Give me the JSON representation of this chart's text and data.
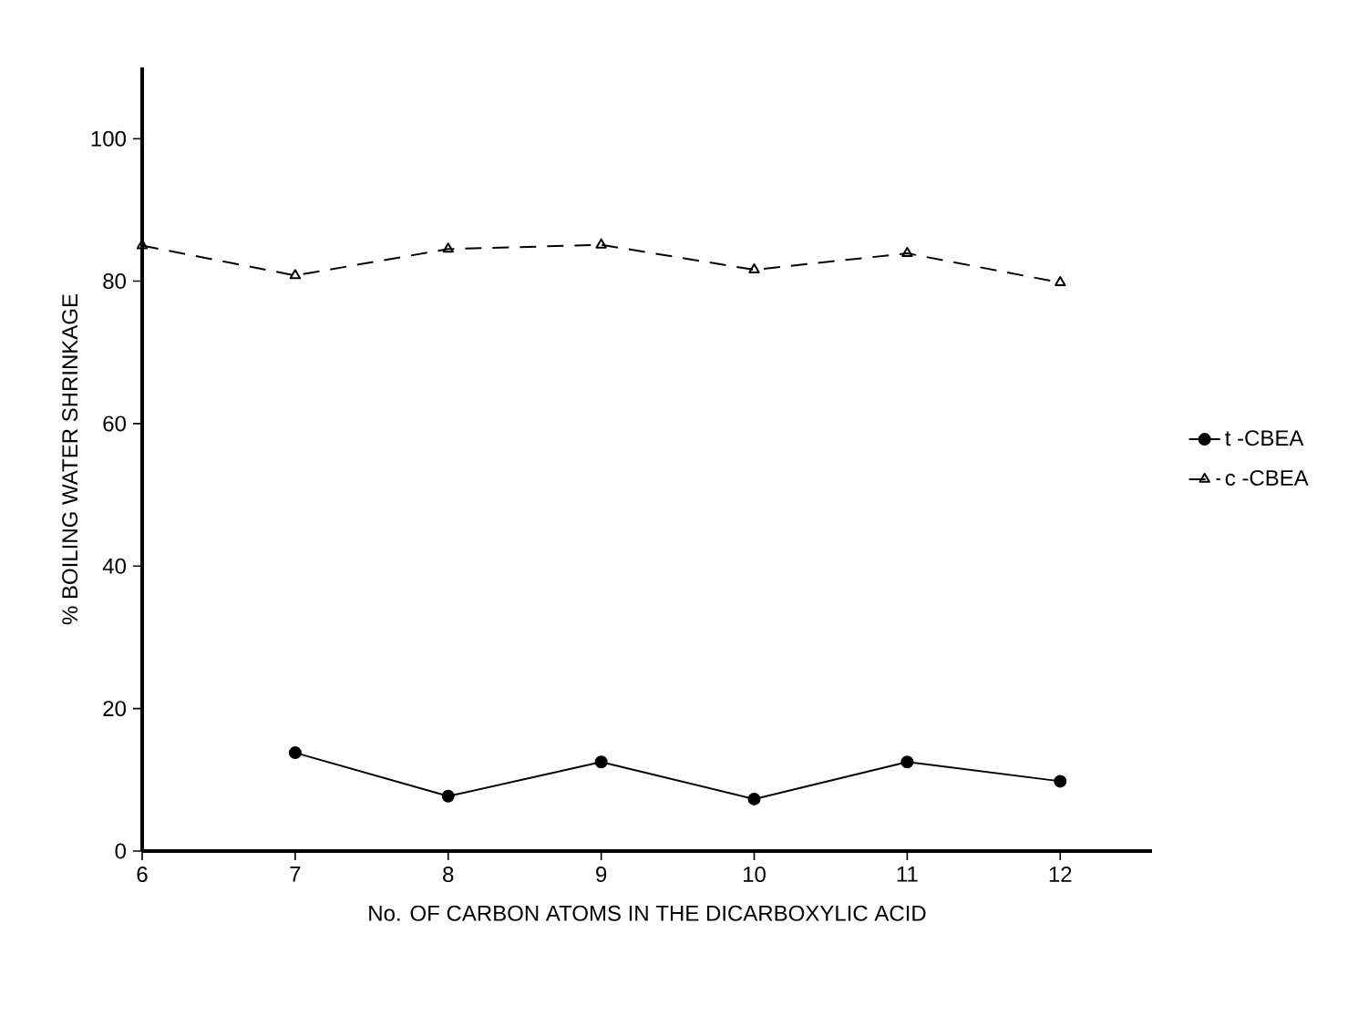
{
  "chart_data": {
    "type": "line",
    "xlabel": "No. OF CARBON ATOMS IN THE DICARBOXYLIC ACID",
    "ylabel": "% BOILING WATER SHRINKAGE",
    "x": [
      6,
      7,
      8,
      9,
      10,
      11,
      12
    ],
    "xlim": [
      6,
      12.6
    ],
    "ylim": [
      0,
      110
    ],
    "xticks": [
      6,
      7,
      8,
      9,
      10,
      11,
      12
    ],
    "yticks": [
      0,
      20,
      40,
      60,
      80,
      100
    ],
    "legend": "right",
    "grid": false,
    "series": [
      {
        "name": "t -CBEA",
        "color": "#000000",
        "marker": "circle",
        "line_style": "solid",
        "values": [
          null,
          13.8,
          7.7,
          12.5,
          7.3,
          12.5,
          9.8
        ]
      },
      {
        "name": "c -CBEA",
        "color": "#000000",
        "marker": "triangle",
        "line_style": "dashed",
        "values": [
          85,
          80.8,
          84.5,
          85.1,
          81.6,
          83.9,
          79.8
        ]
      }
    ]
  }
}
